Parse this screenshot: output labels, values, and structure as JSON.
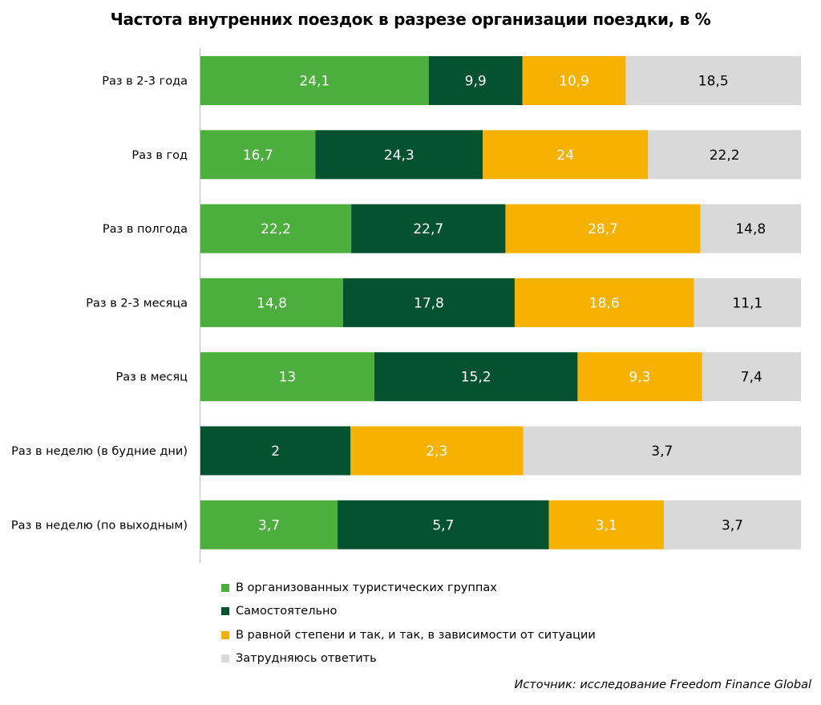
{
  "chart_data": {
    "type": "bar",
    "orientation": "horizontal",
    "stacked": true,
    "title": "Частота внутренних поездок в разрезе организации поездки, в %",
    "categories": [
      "Раз в 2-3 года",
      "Раз в год",
      "Раз в полгода",
      "Раз в 2-3 месяца",
      "Раз в месяц",
      "Раз в неделю (в будние дни)",
      "Раз в неделю (по выходным)"
    ],
    "series": [
      {
        "name": "В организованных туристических группах",
        "color": "#4cae3c",
        "values": [
          24.1,
          16.7,
          22.2,
          14.8,
          13,
          0,
          3.7
        ],
        "labels": [
          "24,1",
          "16,7",
          "22,2",
          "14,8",
          "13",
          "0",
          "3,7"
        ]
      },
      {
        "name": "Самостоятельно",
        "color": "#045230",
        "values": [
          9.9,
          24.3,
          22.7,
          17.8,
          15.2,
          2,
          5.7
        ],
        "labels": [
          "9,9",
          "24,3",
          "22,7",
          "17,8",
          "15,2",
          "2",
          "5,7"
        ]
      },
      {
        "name": "В равной степени и так, и так, в зависимости от ситуации",
        "color": "#f7b100",
        "values": [
          10.9,
          24,
          28.7,
          18.6,
          9.3,
          2.3,
          3.1
        ],
        "labels": [
          "10,9",
          "24",
          "28,7",
          "18,6",
          "9,3",
          "2,3",
          "3,1"
        ]
      },
      {
        "name": "Затрудняюсь ответить",
        "color": "#d9d9d9",
        "values": [
          18.5,
          22.2,
          14.8,
          11.1,
          7.4,
          3.7,
          3.7
        ],
        "labels": [
          "18,5",
          "22,2",
          "14,8",
          "11,1",
          "7,4",
          "3,7",
          "3,7"
        ]
      }
    ],
    "label_colors": [
      "#ffffff",
      "#ffffff",
      "#ffffff",
      "#000000"
    ],
    "normalized_to_100": true,
    "legend_position": "bottom-left",
    "grid": false
  },
  "source": "Источник: исследование Freedom Finance Global"
}
